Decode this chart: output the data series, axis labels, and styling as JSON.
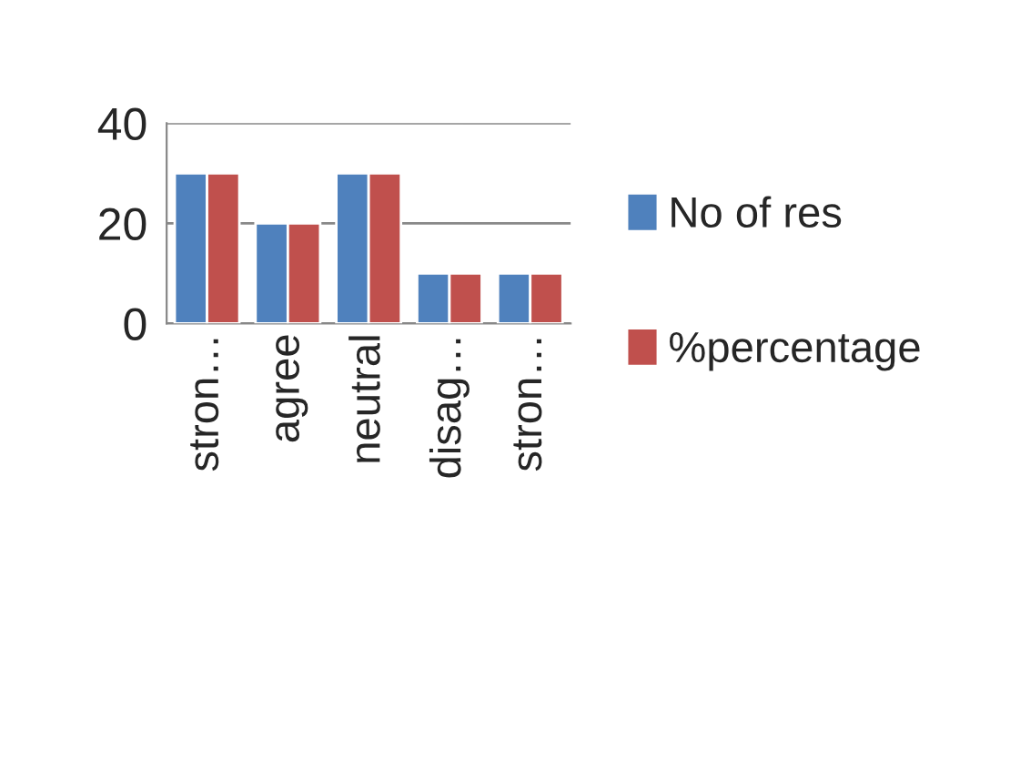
{
  "chart_data": {
    "type": "bar",
    "categories": [
      "stron…",
      "agree",
      "neutral",
      "disag…",
      "stron…"
    ],
    "series": [
      {
        "name": "No of res",
        "color": "#4f81bd",
        "values": [
          30,
          20,
          30,
          10,
          10
        ]
      },
      {
        "name": "%percentage",
        "color": "#c0504d",
        "values": [
          30,
          20,
          30,
          10,
          10
        ]
      }
    ],
    "ylim": [
      0,
      40
    ],
    "yticks": [
      0,
      20,
      40
    ],
    "grid": "y",
    "legend": "right"
  }
}
